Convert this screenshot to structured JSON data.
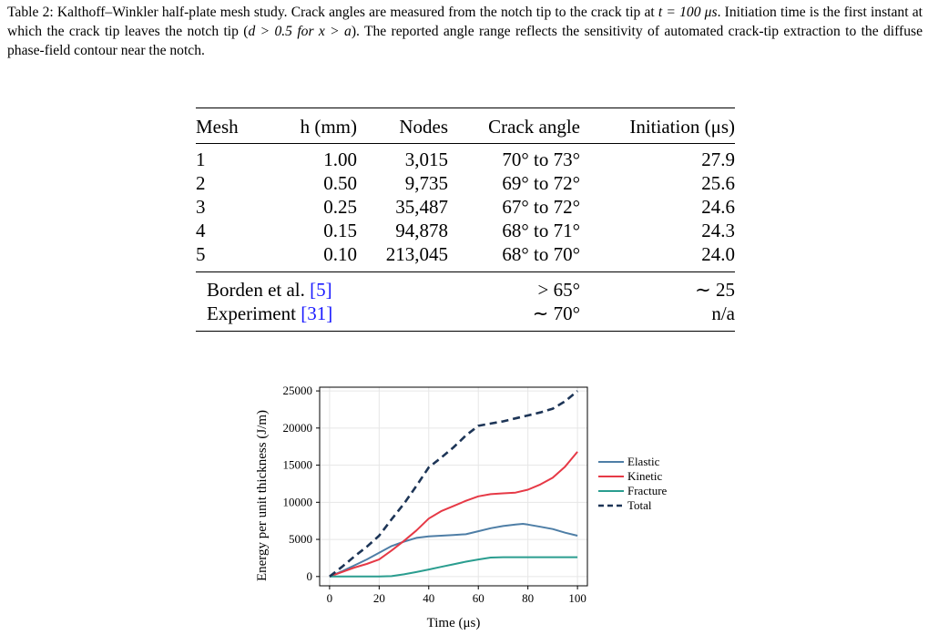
{
  "caption": {
    "parts": [
      "Table 2: Kalthoff–Winkler half-plate mesh study. Crack angles are measured from the notch tip to the crack tip at ",
      "t = 100 μs",
      ". Initiation time is the first instant at which the crack tip leaves the notch tip (",
      "d > 0.5 for x > a",
      "). The reported angle range reflects the sensitivity of automated crack-tip extraction to the diffuse phase-field contour near the notch."
    ]
  },
  "table": {
    "headers": [
      "Mesh",
      "h (mm)",
      "Nodes",
      "Crack angle",
      "Initiation (μs)"
    ],
    "rows": [
      [
        "1",
        "1.00",
        "3,015",
        "70° to 73°",
        "27.9"
      ],
      [
        "2",
        "0.50",
        "9,735",
        "69° to 72°",
        "25.6"
      ],
      [
        "3",
        "0.25",
        "35,487",
        "67° to 72°",
        "24.6"
      ],
      [
        "4",
        "0.15",
        "94,878",
        "68° to 71°",
        "24.3"
      ],
      [
        "5",
        "0.10",
        "213,045",
        "68° to 70°",
        "24.0"
      ]
    ],
    "references": [
      {
        "label": "Borden et al. ",
        "cite": "[5]",
        "angle": "> 65°",
        "initiation": "∼ 25"
      },
      {
        "label": "Experiment ",
        "cite": "[31]",
        "angle": "∼ 70°",
        "initiation": "n/a"
      }
    ]
  },
  "chart_data": {
    "type": "line",
    "title": "",
    "xlabel": "Time (μs)",
    "ylabel": "Energy per unit thickness (J/m)",
    "xlim": [
      -4,
      104
    ],
    "ylim": [
      -1250,
      25500
    ],
    "xticks": [
      0,
      20,
      40,
      60,
      80,
      100
    ],
    "yticks": [
      0,
      5000,
      10000,
      15000,
      20000,
      25000
    ],
    "grid": true,
    "legend_position": "right",
    "series": [
      {
        "name": "Elastic",
        "color": "#4e7ea6",
        "style": "solid",
        "x": [
          0,
          5,
          10,
          15,
          20,
          25,
          30,
          35,
          40,
          45,
          50,
          55,
          60,
          65,
          70,
          75,
          78,
          80,
          85,
          90,
          95,
          100
        ],
        "y": [
          0,
          700,
          1500,
          2300,
          3200,
          4100,
          4700,
          5200,
          5400,
          5500,
          5600,
          5700,
          6100,
          6500,
          6800,
          7000,
          7100,
          7000,
          6700,
          6400,
          5900,
          5500
        ]
      },
      {
        "name": "Kinetic",
        "color": "#e63946",
        "style": "solid",
        "x": [
          0,
          5,
          10,
          15,
          20,
          25,
          30,
          35,
          40,
          45,
          50,
          55,
          60,
          65,
          70,
          75,
          80,
          85,
          90,
          95,
          100
        ],
        "y": [
          0,
          600,
          1200,
          1700,
          2300,
          3500,
          4800,
          6200,
          7800,
          8800,
          9500,
          10200,
          10800,
          11100,
          11200,
          11300,
          11700,
          12400,
          13300,
          14800,
          16800
        ]
      },
      {
        "name": "Fracture",
        "color": "#2a9d8f",
        "style": "solid",
        "x": [
          0,
          5,
          10,
          15,
          20,
          25,
          30,
          35,
          40,
          45,
          50,
          55,
          60,
          65,
          70,
          75,
          80,
          85,
          90,
          95,
          100
        ],
        "y": [
          0,
          0,
          0,
          0,
          0,
          50,
          300,
          600,
          950,
          1300,
          1650,
          2000,
          2300,
          2550,
          2600,
          2600,
          2600,
          2600,
          2600,
          2600,
          2600
        ]
      },
      {
        "name": "Total",
        "color": "#1d3557",
        "style": "dashed",
        "x": [
          0,
          5,
          10,
          15,
          20,
          25,
          30,
          35,
          40,
          45,
          50,
          55,
          60,
          65,
          70,
          75,
          80,
          85,
          90,
          95,
          100
        ],
        "y": [
          0,
          1300,
          2700,
          4000,
          5500,
          7700,
          9800,
          12200,
          14700,
          16000,
          17400,
          19000,
          20300,
          20600,
          20900,
          21300,
          21700,
          22100,
          22600,
          23600,
          25000
        ]
      }
    ]
  }
}
